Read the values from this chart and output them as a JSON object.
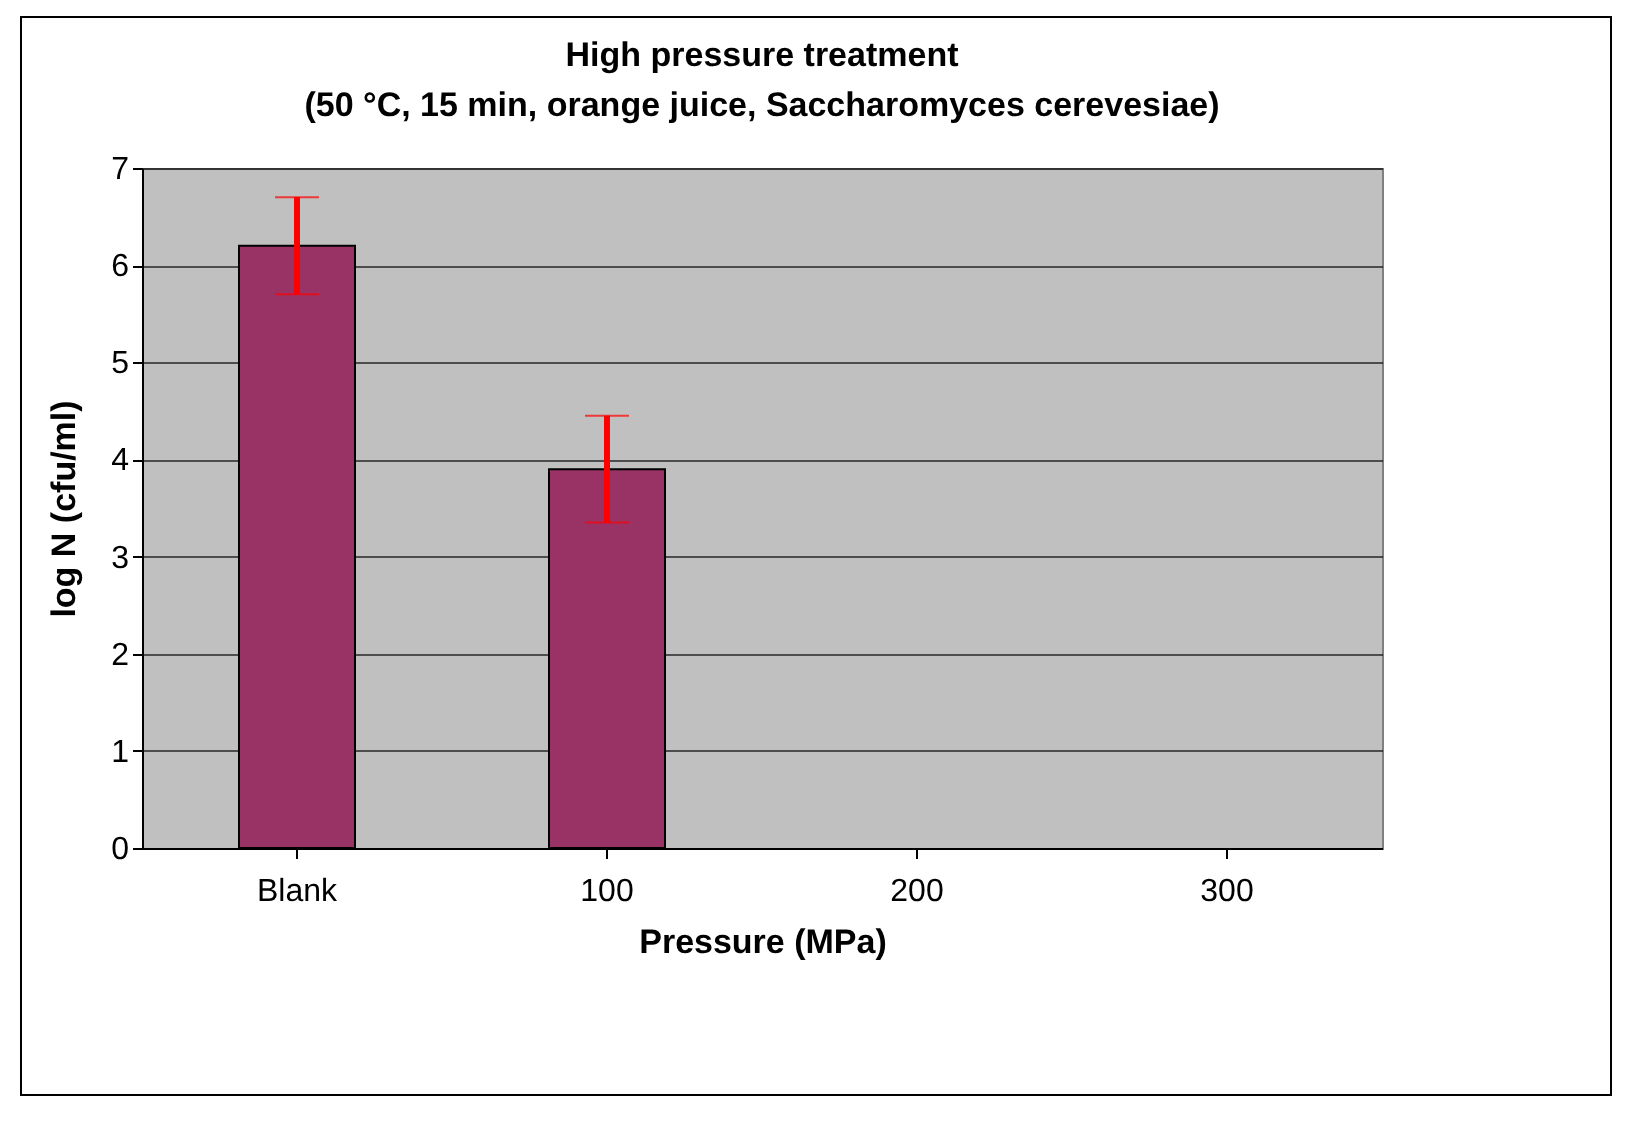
{
  "chart_data": {
    "type": "bar",
    "title": "High pressure treatment",
    "subtitle": "(50 °C, 15 min, orange juice, Saccharomyces cerevesiae)",
    "xlabel": "Pressure (MPa)",
    "ylabel": "log N (cfu/ml)",
    "categories": [
      "Blank",
      "100",
      "200",
      "300"
    ],
    "values": [
      6.2,
      3.9,
      0,
      0
    ],
    "errors": [
      0.5,
      0.55,
      null,
      null
    ],
    "color": "#993366",
    "ylim": [
      0,
      7
    ],
    "yticks": [
      0,
      1,
      2,
      3,
      4,
      5,
      6,
      7
    ],
    "grid": "y"
  }
}
